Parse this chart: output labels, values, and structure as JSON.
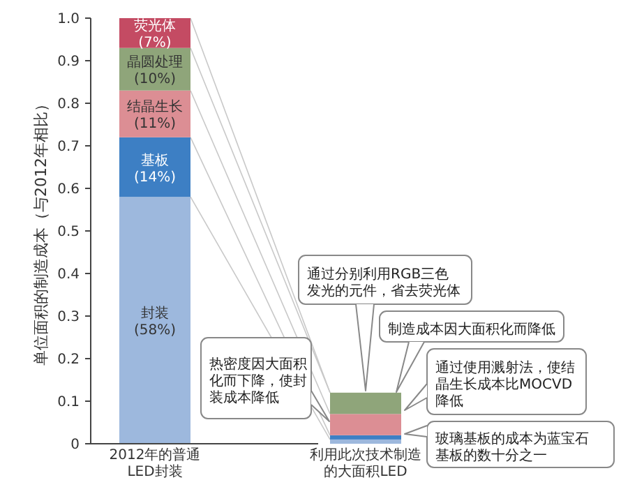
{
  "chart_data": {
    "type": "bar",
    "stacked": true,
    "ylabel": "单位面积的制造成本（与2012年相比）",
    "categories": [
      "2012年的普通LED封装",
      "利用此次技术制造的大面积LED"
    ],
    "series": [
      {
        "name": "封装",
        "color": "#9db8dd",
        "values": [
          0.58,
          0.01
        ],
        "value_labels": [
          "(58%)",
          null
        ]
      },
      {
        "name": "基板",
        "color": "#3d7fc4",
        "values": [
          0.14,
          0.01
        ],
        "value_labels": [
          "(14%)",
          null
        ]
      },
      {
        "name": "结晶生长",
        "color": "#dc8e94",
        "values": [
          0.11,
          0.05
        ],
        "value_labels": [
          "(11%)",
          null
        ]
      },
      {
        "name": "晶圆处理",
        "color": "#8fa57a",
        "values": [
          0.1,
          0.05
        ],
        "value_labels": [
          "(10%)",
          null
        ]
      },
      {
        "name": "荧光体",
        "color": "#c44b63",
        "values": [
          0.07,
          null
        ],
        "value_labels": [
          "(7%)",
          null
        ]
      }
    ],
    "ylim": [
      0,
      1
    ],
    "yticks": [
      0,
      0.1,
      0.2,
      0.3,
      0.4,
      0.5,
      0.6,
      0.7,
      0.8,
      0.9,
      {
        "value": 1,
        "label": "1.0"
      }
    ],
    "annotations": [
      "热密度因大面积化而下降，使封装成本降低",
      "通过分别利用RGB三色发光的元件，省去荧光体",
      "制造成本因大面积化而降低",
      "通过使用溅射法，使结晶生长成本比MOCVD降低",
      "玻璃基板的成本为蓝宝石基板的数十分之一"
    ]
  }
}
